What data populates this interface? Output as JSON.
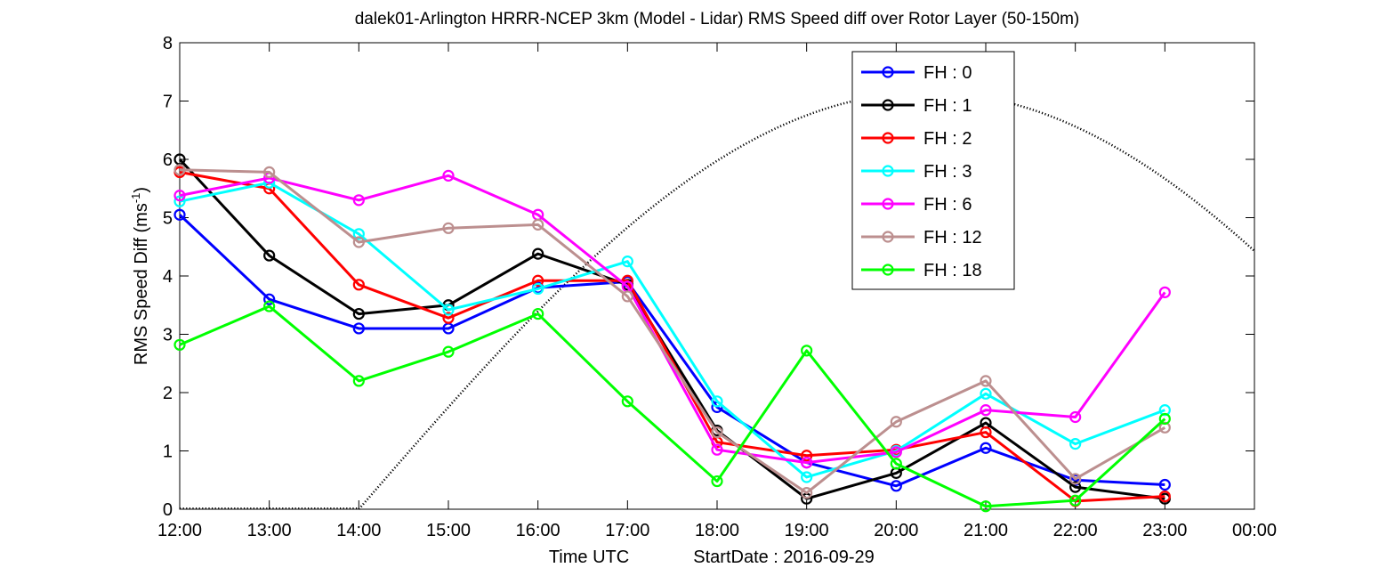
{
  "chart_data": {
    "type": "line",
    "title": "dalek01-Arlington HRRR-NCEP 3km (Model - Lidar) RMS Speed diff over Rotor Layer (50-150m)",
    "xlabel": "Time UTC",
    "xlabel_extra": "StartDate : 2016-09-29",
    "ylabel_main": "RMS Speed Diff (ms",
    "ylabel_sup": "-1",
    "ylabel_close": ")",
    "x_ticks": [
      "12:00",
      "13:00",
      "14:00",
      "15:00",
      "16:00",
      "17:00",
      "18:00",
      "19:00",
      "20:00",
      "21:00",
      "22:00",
      "23:00",
      "00:00"
    ],
    "y_ticks": [
      "0",
      "1",
      "2",
      "3",
      "4",
      "5",
      "6",
      "7",
      "8"
    ],
    "ylim": [
      0,
      8
    ],
    "legend_position": "top-right",
    "grid": false,
    "series": [
      {
        "name": "FH : 0",
        "color": "#0000ff",
        "values": [
          5.05,
          3.6,
          3.1,
          3.1,
          3.8,
          3.9,
          1.75,
          0.8,
          0.4,
          1.05,
          0.5,
          0.42
        ]
      },
      {
        "name": "FH : 1",
        "color": "#000000",
        "values": [
          6.0,
          4.35,
          3.35,
          3.5,
          4.38,
          3.85,
          1.35,
          0.18,
          0.62,
          1.48,
          0.38,
          0.18
        ]
      },
      {
        "name": "FH : 2",
        "color": "#ff0000",
        "values": [
          5.78,
          5.5,
          3.85,
          3.28,
          3.92,
          3.92,
          1.15,
          0.92,
          1.02,
          1.32,
          0.14,
          0.22
        ]
      },
      {
        "name": "FH : 3",
        "color": "#00ffff",
        "values": [
          5.28,
          5.6,
          4.72,
          3.42,
          3.78,
          4.25,
          1.85,
          0.55,
          1.0,
          1.98,
          1.12,
          1.7
        ]
      },
      {
        "name": "FH : 6",
        "color": "#ff00ff",
        "values": [
          5.38,
          5.68,
          5.3,
          5.72,
          5.05,
          3.82,
          1.02,
          0.8,
          0.98,
          1.7,
          1.58,
          3.72
        ]
      },
      {
        "name": "FH : 12",
        "color": "#bc8f8f",
        "values": [
          5.82,
          5.78,
          4.58,
          4.82,
          4.88,
          3.65,
          1.32,
          0.28,
          1.5,
          2.2,
          0.52,
          1.4
        ]
      },
      {
        "name": "FH : 18",
        "color": "#00ff00",
        "values": [
          2.82,
          3.48,
          2.2,
          2.7,
          3.35,
          1.85,
          0.48,
          2.72,
          0.78,
          0.05,
          0.15,
          1.55
        ]
      }
    ],
    "sun_curve": {
      "color": "#000000",
      "start_hour": 14.0,
      "end_hour": 24.0,
      "max_value": 7.15
    }
  }
}
